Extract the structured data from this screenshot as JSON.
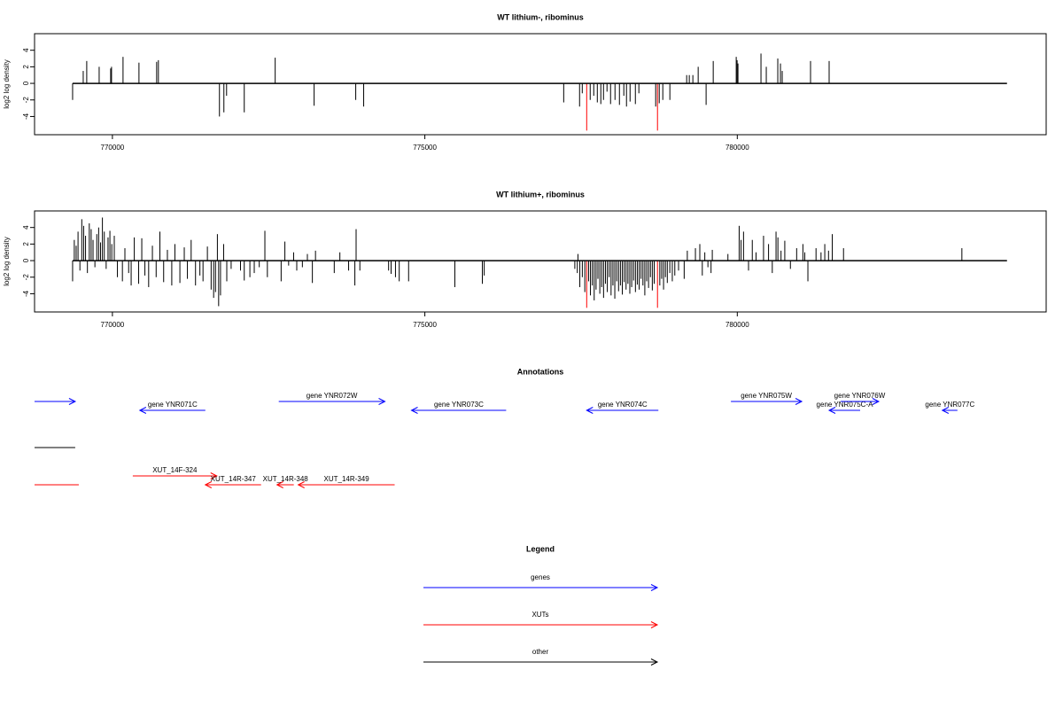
{
  "chart_data": [
    {
      "type": "needle",
      "title": "WT lithium-, ribominus",
      "ylabel": "log2 log density",
      "xlim": [
        768754,
        784943
      ],
      "ylim": [
        -6.2,
        6
      ],
      "xticks": [
        770000,
        775000,
        780000
      ],
      "yticks": [
        -4,
        -2,
        0,
        2,
        4
      ],
      "region": [
        769363,
        784316
      ],
      "series": [
        {
          "color": "#000000",
          "x": [
            769363,
            769533,
            769589,
            769788,
            769972,
            769986,
            770170,
            770425,
            770708,
            770736,
            771713,
            771784,
            771827,
            772110,
            772605,
            773228,
            773894,
            774021,
            777222,
            777476,
            777519,
            777646,
            777703,
            777760,
            777816,
            777859,
            777915,
            777972,
            778043,
            778114,
            778184,
            778227,
            778284,
            778369,
            778425,
            778694,
            778751,
            778808,
            778921,
            779190,
            779232,
            779289,
            779374,
            779501,
            779615,
            779983,
            779997,
            780011,
            780379,
            780464,
            780648,
            780691,
            780719,
            781172,
            781470
          ],
          "values": [
            -2.0,
            1.5,
            2.7,
            2.0,
            1.8,
            2.0,
            3.2,
            2.5,
            2.6,
            2.8,
            -4.0,
            -3.5,
            -1.5,
            -3.5,
            3.1,
            -2.7,
            -2.0,
            -2.8,
            -2.3,
            -2.8,
            -1.2,
            -2.0,
            -1.5,
            -2.3,
            -2.5,
            -2.0,
            -1.0,
            -2.5,
            -2.0,
            -2.6,
            -1.5,
            -2.8,
            -2.2,
            -2.5,
            -1.2,
            -2.8,
            -2.4,
            -2.0,
            -2.0,
            1.0,
            1.0,
            1.0,
            2.0,
            -2.6,
            2.7,
            3.2,
            2.8,
            2.4,
            3.6,
            2.0,
            3.0,
            2.4,
            1.5,
            2.7,
            2.7
          ]
        },
        {
          "color": "#ff0000",
          "x": [
            777590,
            778723
          ],
          "values": [
            -5.7,
            -5.7
          ]
        }
      ]
    },
    {
      "type": "needle",
      "title": "WT lithium+, ribominus",
      "ylabel": "log2 log density",
      "xlim": [
        768754,
        784943
      ],
      "ylim": [
        -6.2,
        6
      ],
      "xticks": [
        770000,
        775000,
        780000
      ],
      "yticks": [
        -4,
        -2,
        0,
        2,
        4
      ],
      "region": [
        769363,
        784316
      ],
      "series": [
        {
          "color": "#000000",
          "x": [
            769363,
            769390,
            769420,
            769450,
            769480,
            769510,
            769540,
            769570,
            769600,
            769630,
            769660,
            769690,
            769720,
            769750,
            769780,
            769810,
            769840,
            769870,
            769900,
            769930,
            769960,
            769990,
            770030,
            770080,
            770160,
            770200,
            770260,
            770300,
            770350,
            770420,
            770470,
            770520,
            770580,
            770640,
            770700,
            770760,
            770820,
            770880,
            770950,
            771000,
            771080,
            771150,
            771200,
            771260,
            771330,
            771400,
            771450,
            771520,
            771580,
            771620,
            771650,
            771680,
            771700,
            771730,
            771780,
            771830,
            771900,
            772050,
            772110,
            772200,
            772270,
            772350,
            772440,
            772480,
            772700,
            772760,
            772820,
            772900,
            772950,
            773040,
            773120,
            773200,
            773250,
            773550,
            773640,
            773780,
            773880,
            773900,
            773960,
            774420,
            774460,
            774530,
            774590,
            774740,
            775480,
            775920,
            775950,
            777400,
            777440,
            777450,
            777480,
            777520,
            777560,
            777620,
            777650,
            777680,
            777710,
            777740,
            777770,
            777800,
            777830,
            777860,
            777890,
            777920,
            777950,
            777980,
            778010,
            778040,
            778070,
            778100,
            778130,
            778160,
            778190,
            778220,
            778250,
            778280,
            778310,
            778340,
            778370,
            778400,
            778430,
            778460,
            778490,
            778520,
            778550,
            778580,
            778610,
            778640,
            778670,
            778760,
            778790,
            778820,
            778850,
            778880,
            778920,
            778960,
            779000,
            779060,
            779150,
            779200,
            779330,
            779400,
            779440,
            779480,
            779530,
            779580,
            779600,
            779850,
            780030,
            780060,
            780100,
            780180,
            780240,
            780300,
            780420,
            780500,
            780560,
            780620,
            780650,
            780700,
            780760,
            780850,
            780950,
            781050,
            781080,
            781130,
            781260,
            781340,
            781400,
            781460,
            781520,
            781700,
            783594
          ],
          "values": [
            -2.5,
            2.5,
            1.8,
            3.5,
            -1.2,
            5.0,
            4.2,
            3.0,
            -1.5,
            4.5,
            3.8,
            2.5,
            -0.8,
            3.2,
            4.0,
            2.2,
            5.2,
            3.5,
            -1.0,
            2.8,
            3.6,
            2.0,
            3.0,
            -2.0,
            -2.5,
            1.5,
            -1.5,
            -3.0,
            2.8,
            -2.8,
            2.7,
            -1.8,
            -3.2,
            1.8,
            -2.0,
            3.5,
            -2.6,
            1.3,
            -3.0,
            2.0,
            -2.7,
            1.6,
            -2.2,
            2.5,
            -3.0,
            -1.8,
            -2.5,
            1.7,
            -3.5,
            -4.5,
            -3.8,
            3.2,
            -5.5,
            -4.2,
            2.0,
            -2.5,
            -1.0,
            -1.2,
            -2.4,
            -2.0,
            -1.5,
            -0.8,
            3.6,
            -2.0,
            -2.5,
            2.3,
            -0.6,
            1.0,
            -1.2,
            -0.8,
            0.8,
            -2.7,
            1.2,
            -1.5,
            1.0,
            -1.2,
            -3.0,
            3.8,
            -1.2,
            -1.2,
            -1.6,
            -2.0,
            -2.5,
            -2.5,
            -3.2,
            -2.8,
            -1.8,
            -1.0,
            -1.5,
            0.8,
            -3.2,
            -2.0,
            -3.8,
            -2.5,
            -4.2,
            -3.0,
            -4.8,
            -3.5,
            -2.2,
            -4.0,
            -3.2,
            -4.5,
            -2.8,
            -3.8,
            -2.0,
            -4.2,
            -3.0,
            -4.6,
            -2.5,
            -3.7,
            -3.0,
            -4.1,
            -2.6,
            -3.5,
            -2.8,
            -4.0,
            -3.2,
            -2.4,
            -3.8,
            -2.9,
            -3.5,
            -2.2,
            -3.0,
            -4.2,
            -2.5,
            -3.3,
            -2.0,
            -3.6,
            -2.8,
            -3.0,
            -2.2,
            -3.5,
            -2.0,
            -2.7,
            -1.5,
            -2.5,
            -1.8,
            -1.2,
            -2.2,
            1.2,
            1.5,
            2.0,
            -1.8,
            1.0,
            -0.8,
            -1.5,
            1.3,
            0.8,
            4.2,
            2.5,
            3.5,
            -1.2,
            2.5,
            1.0,
            3.0,
            2.0,
            -1.5,
            3.5,
            2.8,
            1.2,
            2.4,
            -1.0,
            1.5,
            2.0,
            1.0,
            -2.5,
            1.5,
            1.0,
            2.0,
            1.2,
            3.2,
            1.5,
            1.5
          ]
        },
        {
          "color": "#ff0000",
          "x": [
            777590,
            778723
          ],
          "values": [
            -5.7,
            -5.7
          ]
        }
      ]
    }
  ],
  "annotations": {
    "title": "Annotations",
    "features": [
      {
        "label": null,
        "kind": "gene",
        "strand": "+",
        "color": "#0000ff",
        "start": 768754,
        "end": 769405
      },
      {
        "label": "gene YNR071C",
        "kind": "gene",
        "strand": "-",
        "color": "#0000ff",
        "start": 770439,
        "end": 771487
      },
      {
        "label": "gene YNR072W",
        "kind": "gene",
        "strand": "+",
        "color": "#0000ff",
        "start": 772662,
        "end": 774361
      },
      {
        "label": "gene YNR073C",
        "kind": "gene",
        "strand": "-",
        "color": "#0000ff",
        "start": 774786,
        "end": 776301
      },
      {
        "label": "gene YNR074C",
        "kind": "gene",
        "strand": "-",
        "color": "#0000ff",
        "start": 777590,
        "end": 778737
      },
      {
        "label": "gene YNR075W",
        "kind": "gene",
        "strand": "+",
        "color": "#0000ff",
        "start": 779898,
        "end": 781031
      },
      {
        "label": "gene YNR075C-A",
        "kind": "gene",
        "strand": "-",
        "color": "#0000ff",
        "start": 781470,
        "end": 781966
      },
      {
        "label": "gene YNR076W",
        "kind": "gene",
        "strand": "+",
        "color": "#0000ff",
        "start": 781654,
        "end": 782263
      },
      {
        "label": "gene YNR077C",
        "kind": "gene",
        "strand": "-",
        "color": "#0000ff",
        "start": 783282,
        "end": 783523
      },
      {
        "label": null,
        "kind": "other",
        "strand": null,
        "color": "#000000",
        "start": 768754,
        "end": 769405
      },
      {
        "label": null,
        "kind": "XUT",
        "strand": null,
        "color": "#ff0000",
        "start": 768754,
        "end": 769462
      },
      {
        "label": "XUT_14F-324",
        "kind": "XUT",
        "strand": "+",
        "color": "#ff0000",
        "start": 770326,
        "end": 771671
      },
      {
        "label": "XUT_14R-347",
        "kind": "XUT",
        "strand": "-",
        "color": "#ff0000",
        "start": 771487,
        "end": 772379
      },
      {
        "label": "XUT_14R-348",
        "kind": "XUT",
        "strand": "-",
        "color": "#ff0000",
        "start": 772634,
        "end": 772903
      },
      {
        "label": "XUT_14R-349",
        "kind": "XUT",
        "strand": "-",
        "color": "#ff0000",
        "start": 772974,
        "end": 774517
      }
    ]
  },
  "legend": {
    "title": "Legend",
    "items": [
      {
        "label": "genes",
        "color": "#0000ff"
      },
      {
        "label": "XUTs",
        "color": "#ff0000"
      },
      {
        "label": "other",
        "color": "#000000"
      }
    ]
  }
}
